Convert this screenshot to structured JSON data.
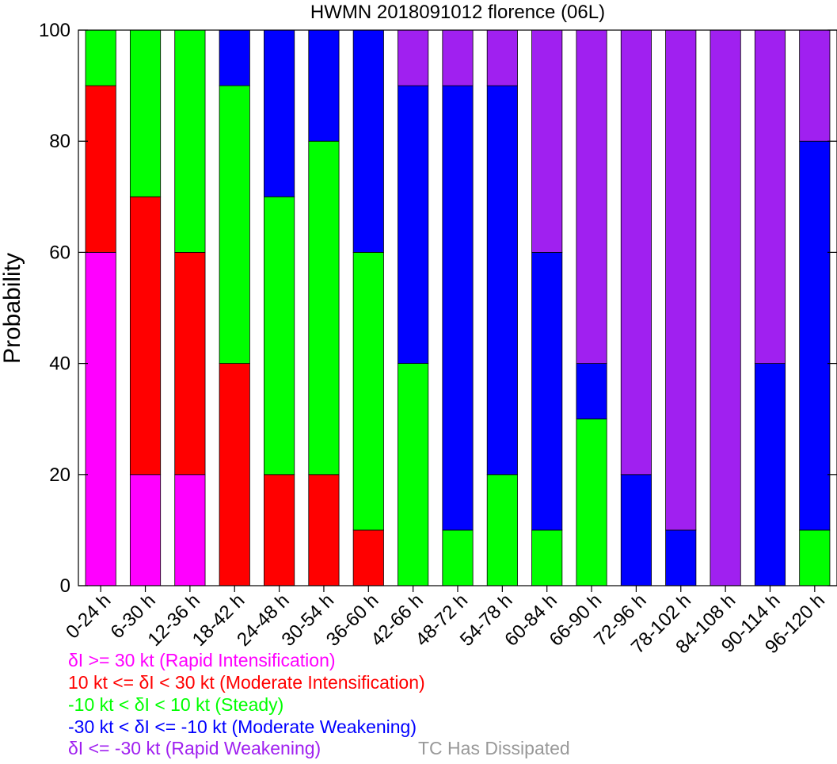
{
  "chart_data": {
    "type": "bar",
    "stacked": true,
    "title": "HWMN 2018091012 florence (06L)",
    "ylabel": "Probability",
    "xlabel": "",
    "ylim": [
      0,
      100
    ],
    "yticks": [
      0,
      20,
      40,
      60,
      80,
      100
    ],
    "grid": false,
    "categories": [
      "0-24 h",
      "6-30 h",
      "12-36 h",
      "18-42 h",
      "24-48 h",
      "30-54 h",
      "36-60 h",
      "42-66 h",
      "48-72 h",
      "54-78 h",
      "60-84 h",
      "66-90 h",
      "72-96 h",
      "78-102 h",
      "84-108 h",
      "90-114 h",
      "96-120 h"
    ],
    "series": [
      {
        "name": "δI >= 30 kt (Rapid Intensification)",
        "color": "#ff00ff",
        "values": [
          60,
          20,
          20,
          0,
          0,
          0,
          0,
          0,
          0,
          0,
          0,
          0,
          0,
          0,
          0,
          0,
          0
        ]
      },
      {
        "name": "10 kt <= δI < 30 kt (Moderate Intensification)",
        "color": "#ff0000",
        "values": [
          30,
          50,
          40,
          40,
          20,
          20,
          10,
          0,
          0,
          0,
          0,
          0,
          0,
          0,
          0,
          0,
          0
        ]
      },
      {
        "name": "-10 kt < δI < 10 kt (Steady)",
        "color": "#00ff00",
        "values": [
          10,
          30,
          40,
          50,
          50,
          60,
          50,
          40,
          10,
          20,
          10,
          30,
          0,
          0,
          0,
          0,
          10
        ]
      },
      {
        "name": "-30 kt < δI <= -10 kt (Moderate Weakening)",
        "color": "#0000ff",
        "values": [
          0,
          0,
          0,
          10,
          30,
          20,
          40,
          50,
          80,
          70,
          50,
          10,
          20,
          10,
          0,
          40,
          70
        ]
      },
      {
        "name": "δI <= -30 kt (Rapid Weakening)",
        "color": "#a020f0",
        "values": [
          0,
          0,
          0,
          0,
          0,
          0,
          0,
          10,
          10,
          10,
          40,
          60,
          80,
          90,
          100,
          60,
          20
        ]
      }
    ],
    "legend": {
      "placement": "bottom-left",
      "extra_label": "TC Has Dissipated",
      "extra_label_color": "#999999"
    }
  }
}
